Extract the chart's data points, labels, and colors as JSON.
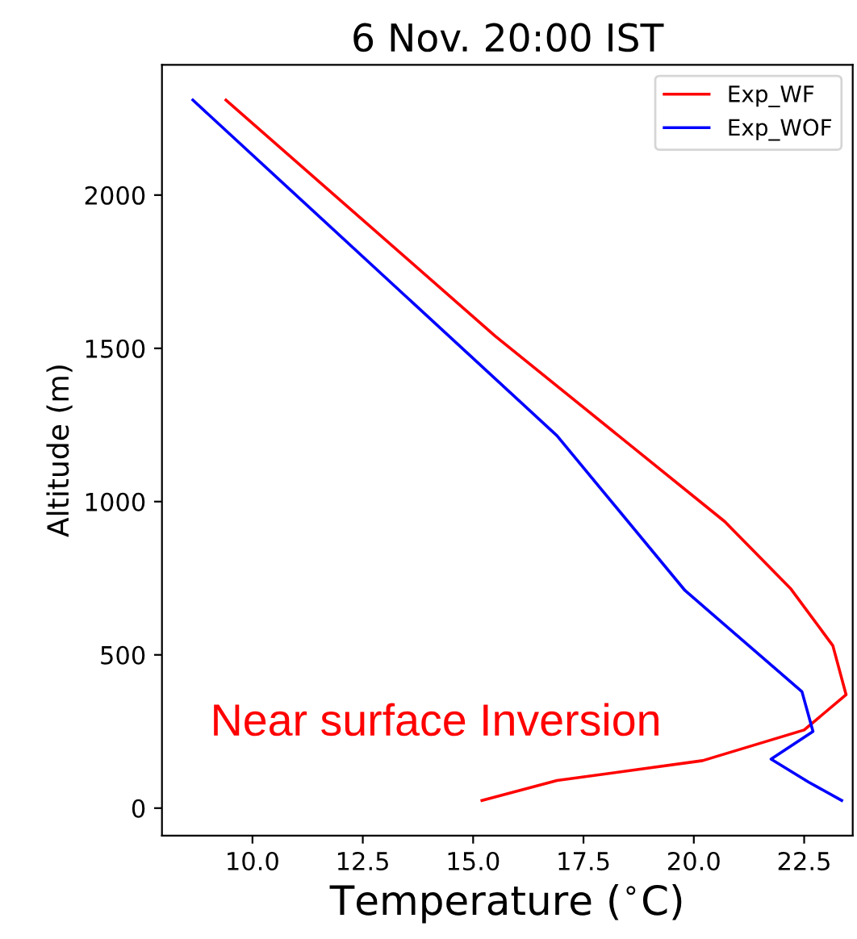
{
  "chart_data": {
    "type": "line",
    "title": "6 Nov. 20:00 IST",
    "xlabel": "Temperature ($^{∘}$C)",
    "ylabel": "Altitude (m)",
    "series": [
      {
        "name": "Exp_WF",
        "color": "#ff0000",
        "x": [
          9.4,
          15.5,
          20.7,
          22.2,
          23.15,
          23.45,
          22.5,
          20.2,
          16.9,
          15.2
        ],
        "values": [
          2310,
          1540,
          935,
          715,
          530,
          370,
          255,
          155,
          90,
          25
        ]
      },
      {
        "name": "Exp_WOF",
        "color": "#0000ff",
        "x": [
          8.65,
          16.9,
          19.8,
          22.45,
          22.7,
          21.75,
          22.6,
          23.35
        ],
        "values": [
          2310,
          1215,
          710,
          380,
          250,
          160,
          85,
          25
        ]
      }
    ],
    "annotations": [
      "Near surface Inversion"
    ],
    "xlim": [
      7.95,
      23.6
    ],
    "ylim": [
      -90,
      2425
    ],
    "xticks": [
      {
        "value": 10,
        "label": "10.0"
      },
      {
        "value": 12.5,
        "label": "12.5"
      },
      {
        "value": 15,
        "label": "15.0"
      },
      {
        "value": 17.5,
        "label": "17.5"
      },
      {
        "value": 20,
        "label": "20.0"
      },
      {
        "value": 22.5,
        "label": "22.5"
      }
    ],
    "yticks": [
      0,
      500,
      1000,
      1500,
      2000
    ],
    "legend": "top right",
    "grid": false,
    "marker": "none",
    "line_style": "solid"
  }
}
